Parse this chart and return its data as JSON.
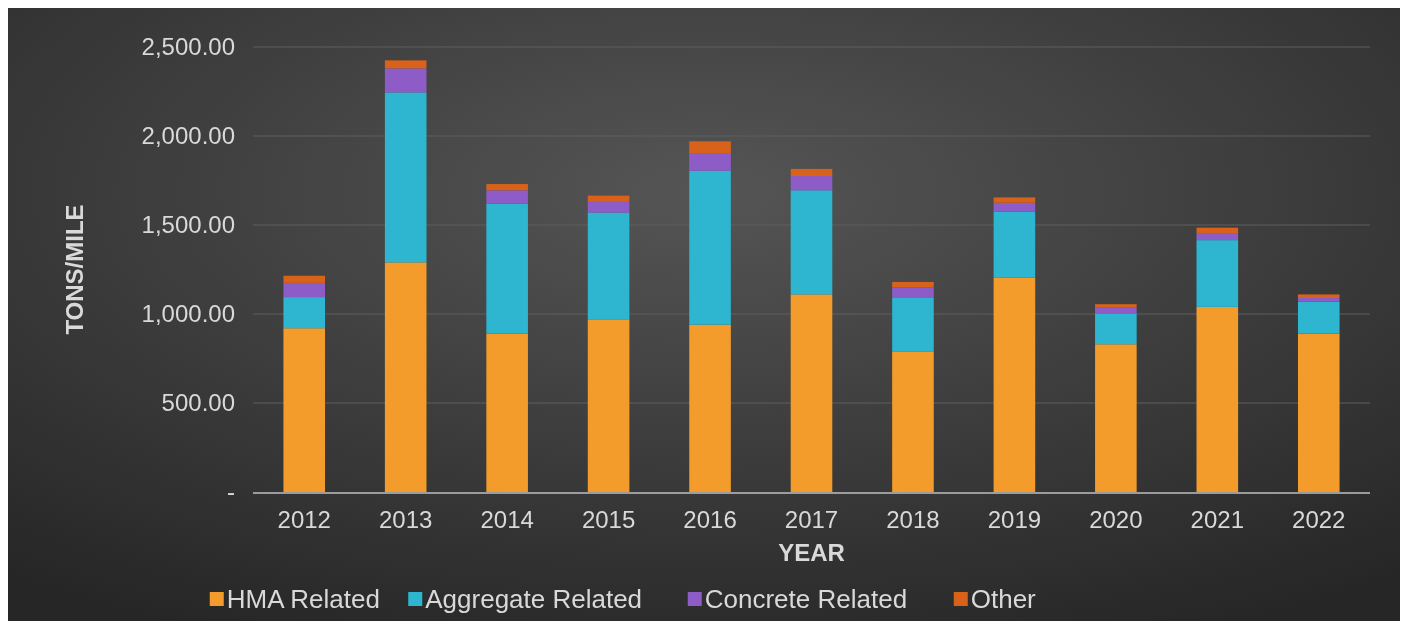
{
  "chart_data": {
    "type": "bar",
    "stacked": true,
    "xlabel": "YEAR",
    "ylabel": "TONS/MILE",
    "categories": [
      "2012",
      "2013",
      "2014",
      "2015",
      "2016",
      "2017",
      "2018",
      "2019",
      "2020",
      "2021",
      "2022"
    ],
    "series": [
      {
        "name": "HMA Related",
        "color": "#f39c2b",
        "values": [
          920,
          1290,
          890,
          970,
          940,
          1110,
          790,
          1205,
          830,
          1040,
          890
        ]
      },
      {
        "name": "Aggregate Related",
        "color": "#2eb5d0",
        "values": [
          175,
          955,
          730,
          600,
          865,
          585,
          300,
          370,
          170,
          375,
          180
        ]
      },
      {
        "name": "Concrete Related",
        "color": "#8e5cc7",
        "values": [
          80,
          135,
          75,
          60,
          95,
          80,
          60,
          50,
          35,
          40,
          20
        ]
      },
      {
        "name": "Other",
        "color": "#d9621a",
        "values": [
          40,
          45,
          35,
          35,
          70,
          40,
          30,
          30,
          20,
          30,
          20
        ]
      }
    ],
    "ylim": [
      0,
      2500
    ],
    "yticks": [
      {
        "value": 0,
        "label": "-"
      },
      {
        "value": 500,
        "label": "500.00"
      },
      {
        "value": 1000,
        "label": "1,000.00"
      },
      {
        "value": 1500,
        "label": "1,500.00"
      },
      {
        "value": 2000,
        "label": "2,000.00"
      },
      {
        "value": 2500,
        "label": "2,500.00"
      }
    ],
    "grid": "y",
    "legend": "bottom"
  }
}
